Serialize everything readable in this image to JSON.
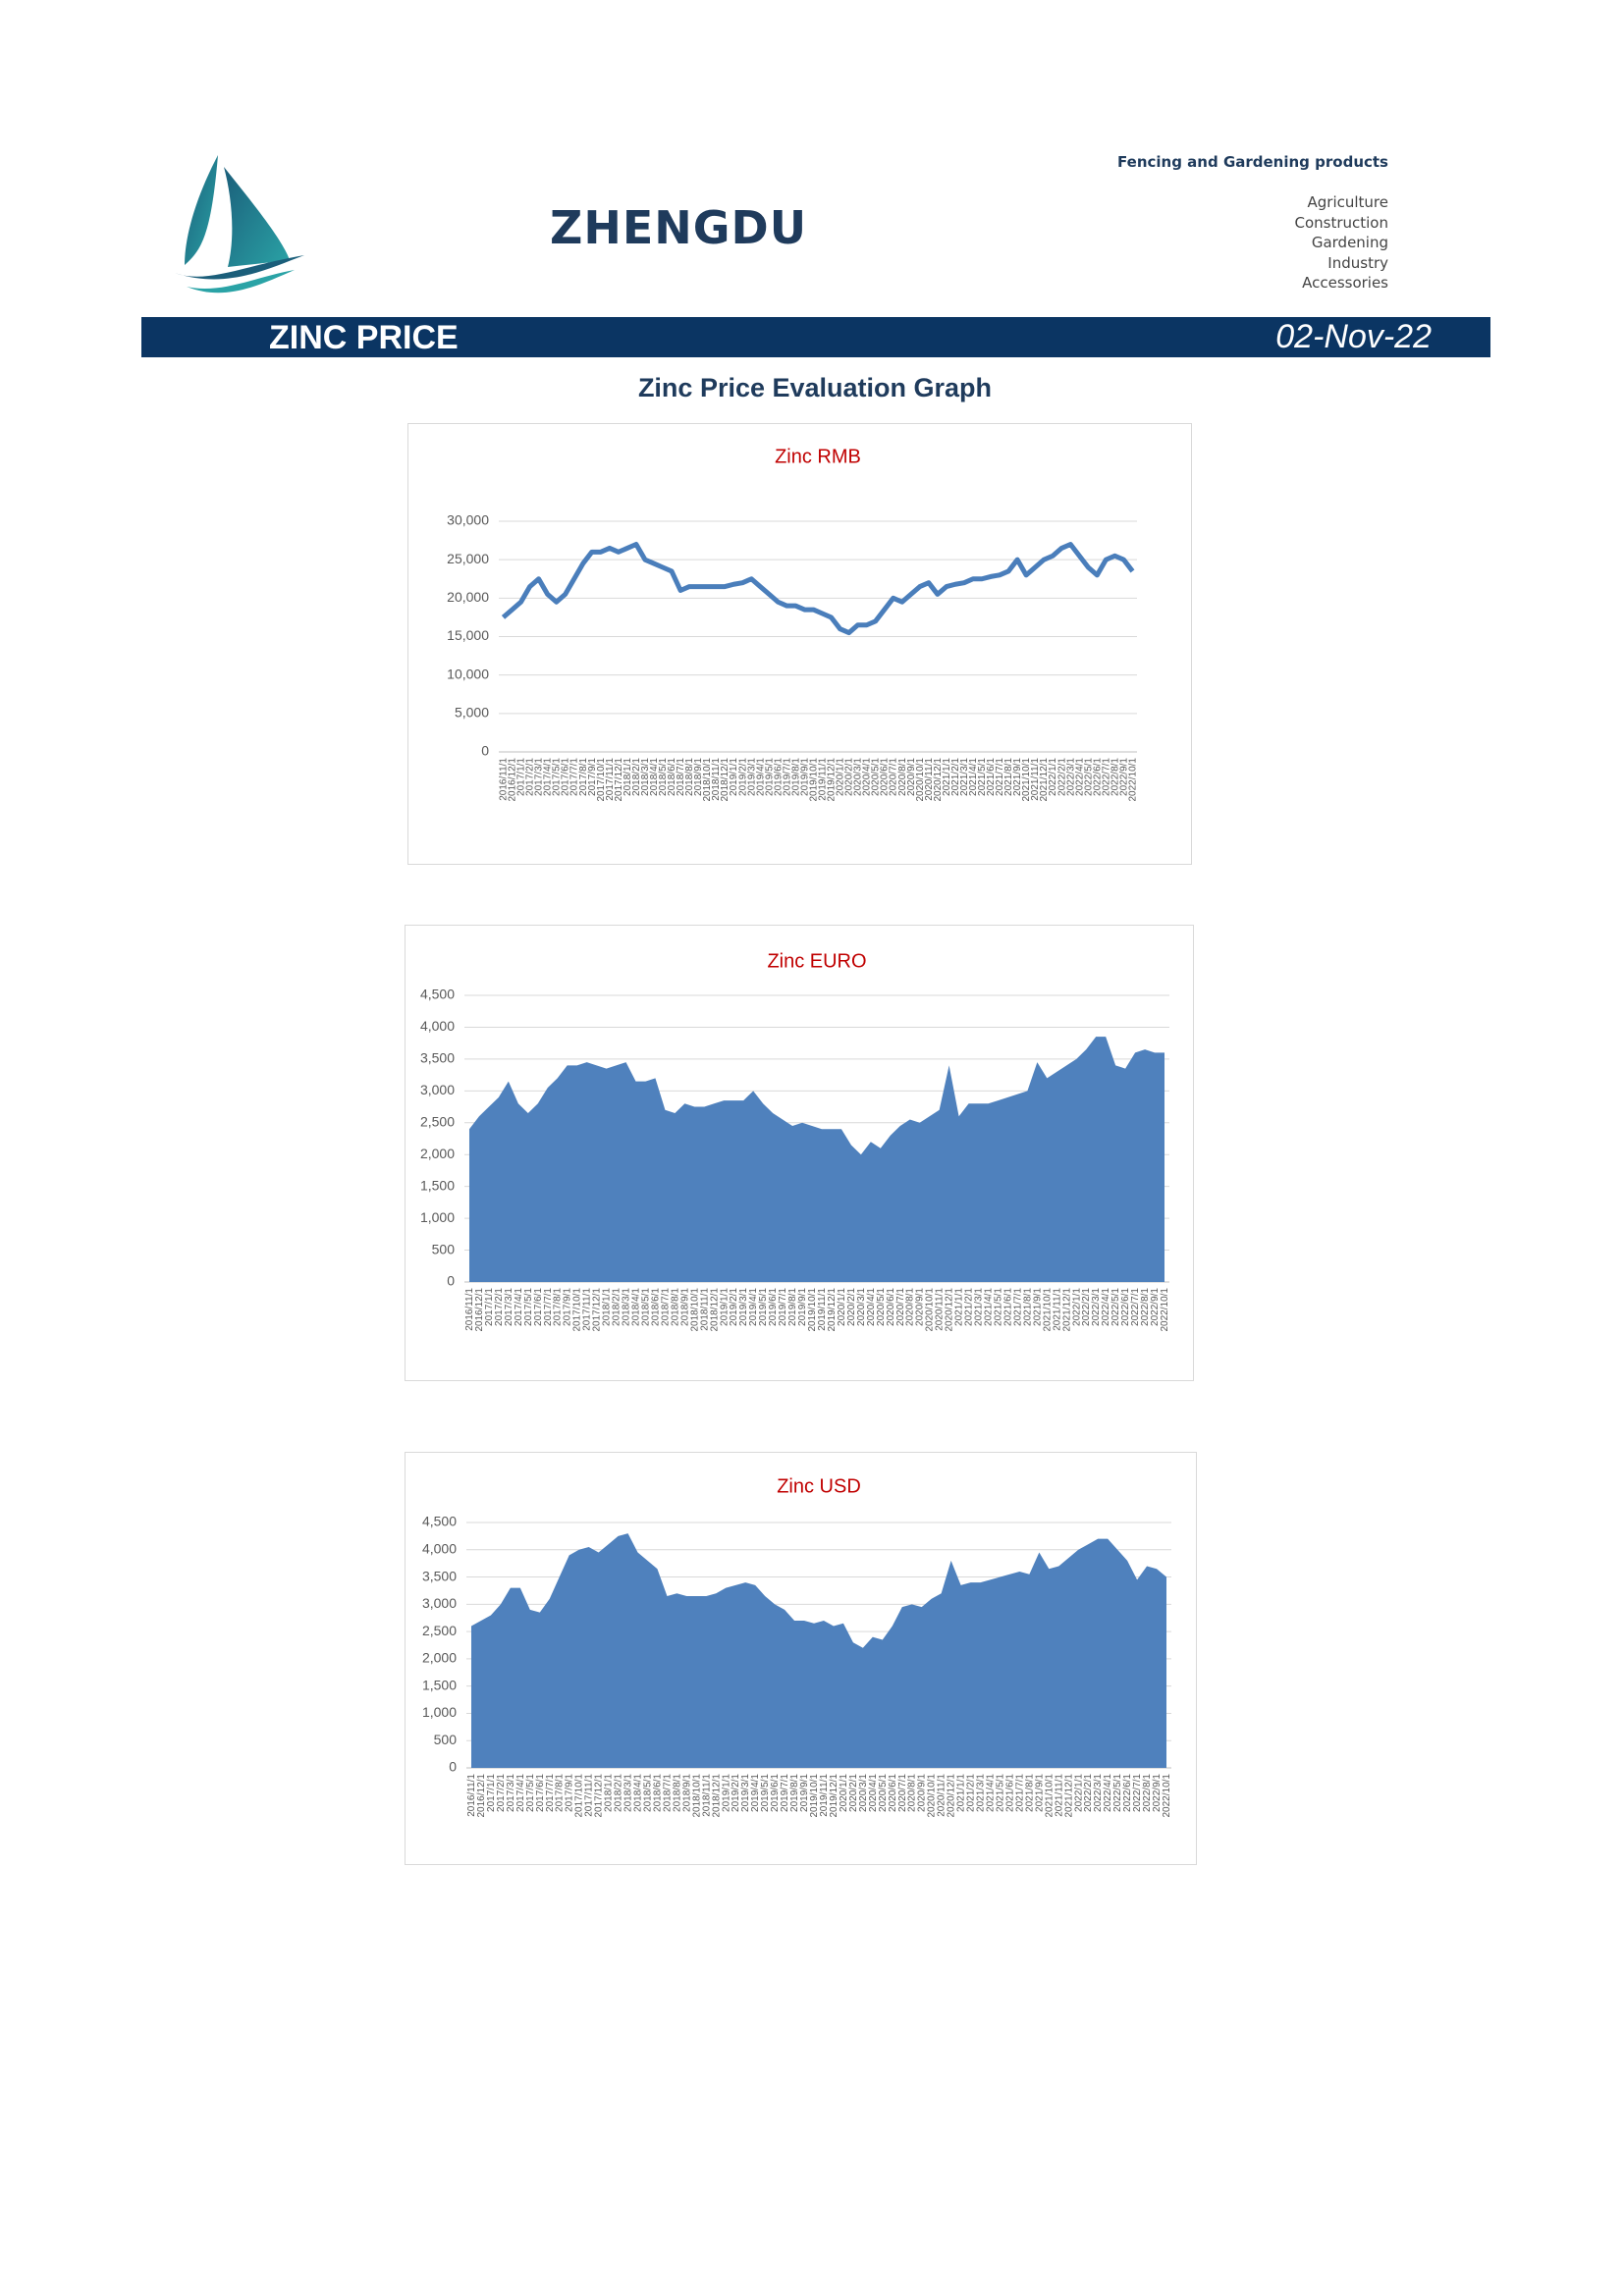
{
  "header": {
    "brand": "ZHENGDU",
    "tagline": "Fencing and Gardening products",
    "sectors": [
      "Agriculture",
      "Construction",
      "Gardening",
      "Industry",
      "Accessories"
    ]
  },
  "banner": {
    "title": "ZINC PRICE",
    "date": "02-Nov-22"
  },
  "heading": "Zinc Price Evaluation Graph",
  "chart_data": [
    {
      "type": "line",
      "title": "Zinc RMB",
      "color": "#4a7ebb",
      "grid": true,
      "categories": [
        "2016/11/1",
        "2016/12/1",
        "2017/1/1",
        "2017/2/1",
        "2017/3/1",
        "2017/4/1",
        "2017/5/1",
        "2017/6/1",
        "2017/7/1",
        "2017/8/1",
        "2017/9/1",
        "2017/10/1",
        "2017/11/1",
        "2017/12/1",
        "2018/1/1",
        "2018/2/1",
        "2018/3/1",
        "2018/4/1",
        "2018/5/1",
        "2018/6/1",
        "2018/7/1",
        "2018/8/1",
        "2018/9/1",
        "2018/10/1",
        "2018/11/1",
        "2018/12/1",
        "2019/1/1",
        "2019/2/1",
        "2019/3/1",
        "2019/4/1",
        "2019/5/1",
        "2019/6/1",
        "2019/7/1",
        "2019/8/1",
        "2019/9/1",
        "2019/10/1",
        "2019/11/1",
        "2019/12/1",
        "2020/1/1",
        "2020/2/1",
        "2020/3/1",
        "2020/4/1",
        "2020/5/1",
        "2020/6/1",
        "2020/7/1",
        "2020/8/1",
        "2020/9/1",
        "2020/10/1",
        "2020/11/1",
        "2020/12/1",
        "2021/1/1",
        "2021/2/1",
        "2021/3/1",
        "2021/4/1",
        "2021/5/1",
        "2021/6/1",
        "2021/7/1",
        "2021/8/1",
        "2021/9/1",
        "2021/10/1",
        "2021/11/1",
        "2021/12/1",
        "2022/1/1",
        "2022/2/1",
        "2022/3/1",
        "2022/4/1",
        "2022/5/1",
        "2022/6/1",
        "2022/7/1",
        "2022/8/1",
        "2022/9/1",
        "2022/10/1"
      ],
      "values": [
        17500,
        18500,
        19500,
        21500,
        22500,
        20500,
        19500,
        20500,
        22500,
        24500,
        26000,
        26000,
        26500,
        26000,
        26500,
        27000,
        25000,
        24500,
        24000,
        23500,
        21000,
        21500,
        21500,
        21500,
        21500,
        21500,
        21800,
        22000,
        22500,
        21500,
        20500,
        19500,
        19000,
        19000,
        18500,
        18500,
        18000,
        17500,
        16000,
        15500,
        16500,
        16500,
        17000,
        18500,
        20000,
        19500,
        20500,
        21500,
        22000,
        20500,
        21500,
        21800,
        22000,
        22500,
        22500,
        22800,
        23000,
        23500,
        25000,
        23000,
        24000,
        25000,
        25500,
        26500,
        27000,
        25500,
        24000,
        23000,
        25000,
        25500,
        25000,
        23500
      ],
      "ylim": [
        0,
        30000
      ],
      "yticks": [
        0,
        {
          "value": 5000,
          "label": "5,000"
        },
        {
          "value": 10000,
          "label": "10,000"
        },
        {
          "value": 15000,
          "label": "15,000"
        },
        {
          "value": 20000,
          "label": "20,000"
        },
        {
          "value": 25000,
          "label": "25,000"
        },
        {
          "value": 30000,
          "label": "30,000"
        }
      ]
    },
    {
      "type": "area",
      "title": "Zinc EURO",
      "color": "#4f81bd",
      "grid": true,
      "categories": [
        "2016/11/1",
        "2016/12/1",
        "2017/1/1",
        "2017/2/1",
        "2017/3/1",
        "2017/4/1",
        "2017/5/1",
        "2017/6/1",
        "2017/7/1",
        "2017/8/1",
        "2017/9/1",
        "2017/10/1",
        "2017/11/1",
        "2017/12/1",
        "2018/1/1",
        "2018/2/1",
        "2018/3/1",
        "2018/4/1",
        "2018/5/1",
        "2018/6/1",
        "2018/7/1",
        "2018/8/1",
        "2018/9/1",
        "2018/10/1",
        "2018/11/1",
        "2018/12/1",
        "2019/1/1",
        "2019/2/1",
        "2019/3/1",
        "2019/4/1",
        "2019/5/1",
        "2019/6/1",
        "2019/7/1",
        "2019/8/1",
        "2019/9/1",
        "2019/10/1",
        "2019/11/1",
        "2019/12/1",
        "2020/1/1",
        "2020/2/1",
        "2020/3/1",
        "2020/4/1",
        "2020/5/1",
        "2020/6/1",
        "2020/7/1",
        "2020/8/1",
        "2020/9/1",
        "2020/10/1",
        "2020/11/1",
        "2020/12/1",
        "2021/1/1",
        "2021/2/1",
        "2021/3/1",
        "2021/4/1",
        "2021/5/1",
        "2021/6/1",
        "2021/7/1",
        "2021/8/1",
        "2021/9/1",
        "2021/10/1",
        "2021/11/1",
        "2021/12/1",
        "2022/1/1",
        "2022/2/1",
        "2022/3/1",
        "2022/4/1",
        "2022/5/1",
        "2022/6/1",
        "2022/7/1",
        "2022/8/1",
        "2022/9/1",
        "2022/10/1"
      ],
      "values": [
        2400,
        2600,
        2750,
        2900,
        3150,
        2800,
        2650,
        2800,
        3050,
        3200,
        3400,
        3400,
        3450,
        3400,
        3350,
        3400,
        3450,
        3150,
        3150,
        3200,
        2700,
        2650,
        2800,
        2750,
        2750,
        2800,
        2850,
        2850,
        2850,
        3000,
        2800,
        2650,
        2550,
        2450,
        2500,
        2450,
        2400,
        2400,
        2400,
        2150,
        2000,
        2200,
        2100,
        2300,
        2450,
        2550,
        2500,
        2600,
        2700,
        3400,
        2600,
        2800,
        2800,
        2800,
        2850,
        2900,
        2950,
        3000,
        3450,
        3200,
        3300,
        3400,
        3500,
        3650,
        3850,
        3850,
        3400,
        3350,
        3600,
        3650,
        3600,
        3600
      ],
      "ylim": [
        0,
        4500
      ],
      "yticks": [
        0,
        500,
        {
          "value": 1000,
          "label": "1,000"
        },
        {
          "value": 1500,
          "label": "1,500"
        },
        {
          "value": 2000,
          "label": "2,000"
        },
        {
          "value": 2500,
          "label": "2,500"
        },
        {
          "value": 3000,
          "label": "3,000"
        },
        {
          "value": 3500,
          "label": "3,500"
        },
        {
          "value": 4000,
          "label": "4,000"
        },
        {
          "value": 4500,
          "label": "4,500"
        }
      ]
    },
    {
      "type": "area",
      "title": "Zinc USD",
      "color": "#4f81bd",
      "grid": true,
      "categories": [
        "2016/11/1",
        "2016/12/1",
        "2017/1/1",
        "2017/2/1",
        "2017/3/1",
        "2017/4/1",
        "2017/5/1",
        "2017/6/1",
        "2017/7/1",
        "2017/8/1",
        "2017/9/1",
        "2017/10/1",
        "2017/11/1",
        "2017/12/1",
        "2018/1/1",
        "2018/2/1",
        "2018/3/1",
        "2018/4/1",
        "2018/5/1",
        "2018/6/1",
        "2018/7/1",
        "2018/8/1",
        "2018/9/1",
        "2018/10/1",
        "2018/11/1",
        "2018/12/1",
        "2019/1/1",
        "2019/2/1",
        "2019/3/1",
        "2019/4/1",
        "2019/5/1",
        "2019/6/1",
        "2019/7/1",
        "2019/8/1",
        "2019/9/1",
        "2019/10/1",
        "2019/11/1",
        "2019/12/1",
        "2020/1/1",
        "2020/2/1",
        "2020/3/1",
        "2020/4/1",
        "2020/5/1",
        "2020/6/1",
        "2020/7/1",
        "2020/8/1",
        "2020/9/1",
        "2020/10/1",
        "2020/11/1",
        "2020/12/1",
        "2021/1/1",
        "2021/2/1",
        "2021/3/1",
        "2021/4/1",
        "2021/5/1",
        "2021/6/1",
        "2021/7/1",
        "2021/8/1",
        "2021/9/1",
        "2021/10/1",
        "2021/11/1",
        "2021/12/1",
        "2022/1/1",
        "2022/2/1",
        "2022/3/1",
        "2022/4/1",
        "2022/5/1",
        "2022/6/1",
        "2022/7/1",
        "2022/8/1",
        "2022/9/1",
        "2022/10/1"
      ],
      "values": [
        2600,
        2700,
        2800,
        3000,
        3300,
        3300,
        2900,
        2850,
        3100,
        3500,
        3900,
        4000,
        4050,
        3950,
        4100,
        4250,
        4300,
        3950,
        3800,
        3650,
        3150,
        3200,
        3150,
        3150,
        3150,
        3200,
        3300,
        3350,
        3400,
        3350,
        3150,
        3000,
        2900,
        2700,
        2700,
        2650,
        2700,
        2600,
        2650,
        2300,
        2200,
        2400,
        2350,
        2600,
        2950,
        3000,
        2950,
        3100,
        3200,
        3800,
        3350,
        3400,
        3400,
        3450,
        3500,
        3550,
        3600,
        3550,
        3950,
        3650,
        3700,
        3850,
        4000,
        4100,
        4200,
        4200,
        4000,
        3800,
        3450,
        3700,
        3650,
        3500
      ],
      "ylim": [
        0,
        4500
      ],
      "yticks": [
        0,
        500,
        {
          "value": 1000,
          "label": "1,000"
        },
        {
          "value": 1500,
          "label": "1,500"
        },
        {
          "value": 2000,
          "label": "2,000"
        },
        {
          "value": 2500,
          "label": "2,500"
        },
        {
          "value": 3000,
          "label": "3,000"
        },
        {
          "value": 3500,
          "label": "3,500"
        },
        {
          "value": 4000,
          "label": "4,000"
        },
        {
          "value": 4500,
          "label": "4,500"
        }
      ]
    }
  ]
}
